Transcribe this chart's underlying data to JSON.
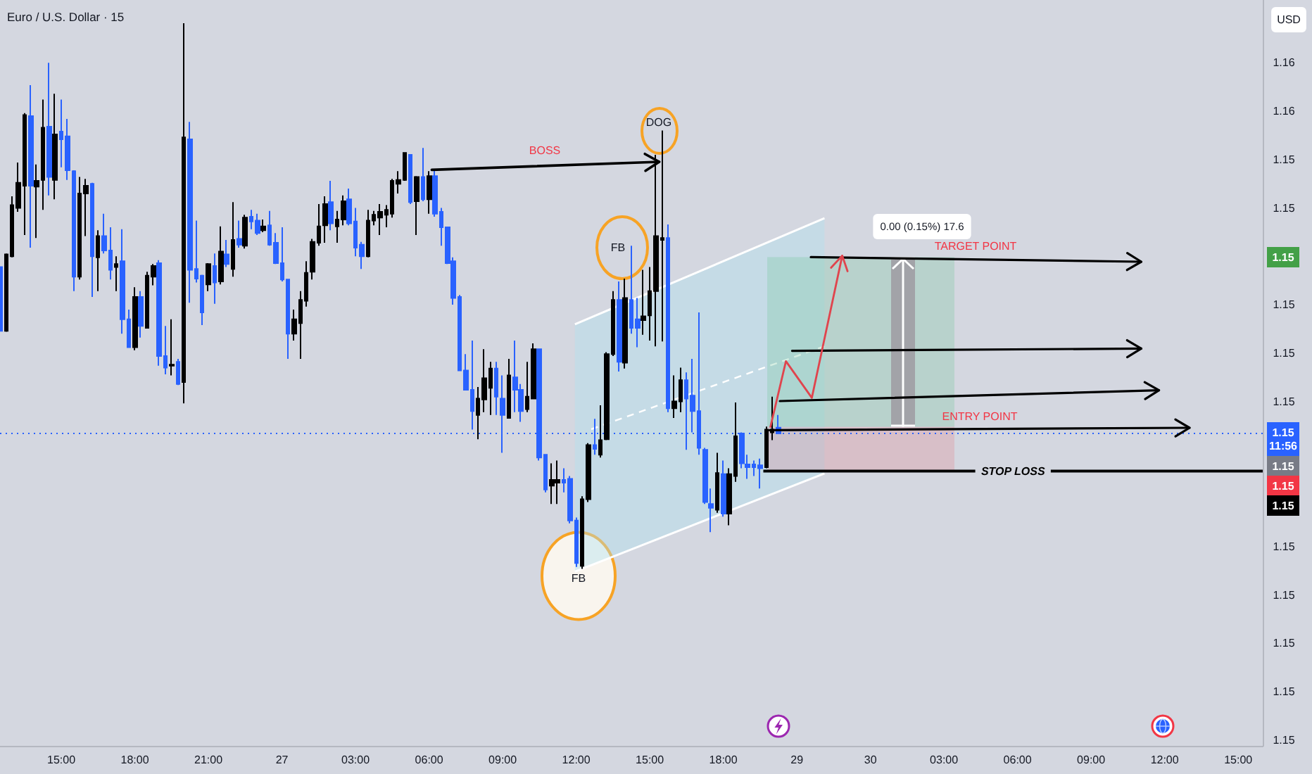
{
  "chart_data": {
    "type": "candlestick",
    "title": "Euro / U.S. Dollar · 15",
    "ylabel": "USD",
    "categories": [
      null,
      null,
      null,
      null,
      null,
      null,
      null,
      null,
      null,
      null,
      "15:00",
      null,
      null,
      null,
      null,
      null,
      null,
      null,
      null,
      null,
      null,
      null,
      "18:00",
      null,
      null,
      null,
      null,
      null,
      null,
      null,
      null,
      null,
      null,
      null,
      "21:00",
      null,
      null,
      null,
      null,
      null,
      null,
      null,
      null,
      null,
      null,
      null,
      "27",
      null,
      null,
      null,
      null,
      null,
      null,
      null,
      null,
      null,
      null,
      null,
      "03:00",
      null,
      null,
      null,
      null,
      null,
      null,
      null,
      null,
      null,
      null,
      null,
      "06:00",
      null,
      null,
      null,
      null,
      null,
      null,
      null,
      null,
      null,
      null,
      null,
      "09:00",
      null,
      null,
      null,
      null,
      null,
      null,
      null,
      null,
      null,
      null,
      null,
      "12:00",
      null,
      null,
      null,
      null,
      null,
      null,
      null,
      null,
      null,
      null,
      null,
      "15:00",
      null,
      null,
      null,
      null,
      null,
      null,
      null,
      null,
      null,
      null,
      null,
      "18:00",
      null,
      null,
      null,
      null,
      null,
      null,
      null,
      null,
      null,
      null,
      null,
      "29",
      null,
      null,
      null,
      null,
      null,
      null,
      null,
      null,
      null,
      null,
      null,
      "30",
      null,
      null,
      null,
      null,
      null,
      null,
      null,
      null,
      null,
      null,
      null,
      "03:00",
      null,
      null,
      null,
      null,
      null,
      null,
      null,
      null,
      null,
      null,
      null,
      "06:00",
      null,
      null,
      null,
      null,
      null,
      null,
      null,
      null,
      null,
      null,
      null,
      "09:00",
      null,
      null,
      null,
      null,
      null,
      null,
      null,
      null,
      null,
      null,
      null,
      "12:00",
      null,
      null,
      null,
      null,
      null,
      null,
      null,
      null,
      null,
      null,
      null,
      "15:00",
      null,
      null,
      null,
      null
    ],
    "ohlc": [
      [
        1.15389,
        1.15392,
        1.1532,
        1.15323
      ],
      [
        1.15323,
        1.15403,
        1.15322,
        1.15402
      ],
      [
        1.154,
        1.15462,
        1.15399,
        1.15453
      ],
      [
        1.1545,
        1.15497,
        1.15446,
        1.15476
      ],
      [
        1.15473,
        1.15548,
        1.15422,
        1.15546
      ],
      [
        1.15545,
        1.15577,
        1.15409,
        1.15473
      ],
      [
        1.15472,
        1.15495,
        1.15419,
        1.15478
      ],
      [
        1.15479,
        1.15562,
        1.15448,
        1.15533
      ],
      [
        1.15534,
        1.156,
        1.15463,
        1.15482
      ],
      [
        1.15479,
        1.15568,
        1.15459,
        1.15526
      ],
      [
        1.15529,
        1.15562,
        1.15492,
        1.15521
      ],
      [
        1.15524,
        1.15542,
        1.15479,
        1.15489
      ],
      [
        1.15488,
        1.15489,
        1.15364,
        1.15379
      ],
      [
        1.15379,
        1.15482,
        1.15376,
        1.15465
      ],
      [
        1.15465,
        1.1548,
        1.15421,
        1.15473
      ],
      [
        1.15475,
        1.15476,
        1.15358,
        1.154
      ],
      [
        1.15399,
        1.15427,
        1.15364,
        1.15421
      ],
      [
        1.15421,
        1.15444,
        1.15403,
        1.15406
      ],
      [
        1.15406,
        1.1543,
        1.15376,
        1.15386
      ],
      [
        1.15389,
        1.154,
        1.15364,
        1.15392
      ],
      [
        1.15395,
        1.15428,
        1.1532,
        1.15335
      ],
      [
        1.15335,
        1.15345,
        1.15306,
        1.15306
      ],
      [
        1.15306,
        1.15368,
        1.15303,
        1.15358
      ],
      [
        1.15358,
        1.15364,
        1.15316,
        1.15328
      ],
      [
        1.15326,
        1.15384,
        1.15326,
        1.1538
      ],
      [
        1.15379,
        1.15392,
        1.1537,
        1.1539
      ],
      [
        1.15393,
        1.15396,
        1.15287,
        1.15297
      ],
      [
        1.15297,
        1.15328,
        1.15278,
        1.15285
      ],
      [
        1.15287,
        1.15335,
        1.15277,
        1.15288
      ],
      [
        1.15291,
        1.15294,
        1.15267,
        1.15268
      ],
      [
        1.1527,
        1.15641,
        1.15248,
        1.15523
      ],
      [
        1.15521,
        1.15539,
        1.15352,
        1.15386
      ],
      [
        1.15387,
        1.15437,
        1.15373,
        1.15377
      ],
      [
        1.1538,
        1.15381,
        1.15329,
        1.15342
      ],
      [
        1.15371,
        1.15393,
        1.15364,
        1.15392
      ],
      [
        1.1539,
        1.15403,
        1.15351,
        1.15373
      ],
      [
        1.15374,
        1.15431,
        1.15371,
        1.15405
      ],
      [
        1.15402,
        1.15417,
        1.15389,
        1.15392
      ],
      [
        1.15387,
        1.15456,
        1.15379,
        1.15417
      ],
      [
        1.15418,
        1.15437,
        1.15409,
        1.15412
      ],
      [
        1.15411,
        1.15443,
        1.15408,
        1.1544
      ],
      [
        1.15441,
        1.15448,
        1.15428,
        1.15436
      ],
      [
        1.15437,
        1.15444,
        1.15422,
        1.15424
      ],
      [
        1.15427,
        1.15438,
        1.15425,
        1.15431
      ],
      [
        1.15432,
        1.15447,
        1.15411,
        1.15412
      ],
      [
        1.15414,
        1.15424,
        1.15392,
        1.15393
      ],
      [
        1.15393,
        1.1543,
        1.15374,
        1.15376
      ],
      [
        1.15376,
        1.15376,
        1.15294,
        1.1532
      ],
      [
        1.1532,
        1.15345,
        1.15313,
        1.15335
      ],
      [
        1.15331,
        1.15364,
        1.15294,
        1.15355
      ],
      [
        1.15354,
        1.15395,
        1.15348,
        1.15383
      ],
      [
        1.15384,
        1.15418,
        1.15376,
        1.15415
      ],
      [
        1.15414,
        1.15454,
        1.15411,
        1.15431
      ],
      [
        1.15432,
        1.15462,
        1.15414,
        1.15454
      ],
      [
        1.15456,
        1.15478,
        1.15427,
        1.15434
      ],
      [
        1.15431,
        1.15447,
        1.15414,
        1.15438
      ],
      [
        1.15438,
        1.15463,
        1.15432,
        1.15457
      ],
      [
        1.15459,
        1.1547,
        1.15432,
        1.15434
      ],
      [
        1.15436,
        1.1545,
        1.154,
        1.15409
      ],
      [
        1.15412,
        1.15415,
        1.15387,
        1.154
      ],
      [
        1.154,
        1.15448,
        1.15399,
        1.15437
      ],
      [
        1.15437,
        1.15447,
        1.15432,
        1.15443
      ],
      [
        1.1544,
        1.15454,
        1.15422,
        1.15446
      ],
      [
        1.15443,
        1.15453,
        1.1543,
        1.15448
      ],
      [
        1.15444,
        1.1548,
        1.1544,
        1.15478
      ],
      [
        1.15475,
        1.15488,
        1.15465,
        1.15479
      ],
      [
        1.15479,
        1.15507,
        1.15478,
        1.15507
      ],
      [
        1.15505,
        1.15505,
        1.15454,
        1.15456
      ],
      [
        1.15457,
        1.15483,
        1.15422,
        1.15482
      ],
      [
        1.15482,
        1.15512,
        1.15457,
        1.15459
      ],
      [
        1.15459,
        1.15488,
        1.15444,
        1.15483
      ],
      [
        1.15483,
        1.15489,
        1.15441,
        1.15444
      ],
      [
        1.15446,
        1.1545,
        1.15411,
        1.1543
      ],
      [
        1.1543,
        1.1543,
        1.15392,
        1.15393
      ],
      [
        1.15395,
        1.15399,
        1.1535,
        1.15357
      ],
      [
        1.15358,
        1.1536,
        1.15282,
        1.15282
      ],
      [
        1.15282,
        1.15299,
        1.15262,
        1.15262
      ],
      [
        1.15262,
        1.15313,
        1.15221,
        1.1524
      ],
      [
        1.15236,
        1.15265,
        1.15211,
        1.15253
      ],
      [
        1.15252,
        1.15304,
        1.15239,
        1.15274
      ],
      [
        1.15264,
        1.15291,
        1.15236,
        1.15284
      ],
      [
        1.15284,
        1.15291,
        1.15236,
        1.15255
      ],
      [
        1.15253,
        1.15277,
        1.15197,
        1.15236
      ],
      [
        1.15233,
        1.15294,
        1.15233,
        1.15277
      ],
      [
        1.15275,
        1.15313,
        1.15239,
        1.15262
      ],
      [
        1.15262,
        1.15268,
        1.15229,
        1.1524
      ],
      [
        1.15242,
        1.15291,
        1.15239,
        1.15255
      ],
      [
        1.15253,
        1.1531,
        1.15253,
        1.15304
      ],
      [
        1.15304,
        1.15304,
        1.15189,
        1.15192
      ],
      [
        1.15195,
        1.15195,
        1.15156,
        1.15159
      ],
      [
        1.15163,
        1.15186,
        1.15144,
        1.15169
      ],
      [
        1.15166,
        1.15189,
        1.15144,
        1.15169
      ],
      [
        1.15169,
        1.15181,
        1.15156,
        1.15166
      ],
      [
        1.1517,
        1.15173,
        1.15124,
        1.15127
      ],
      [
        1.15127,
        1.1513,
        1.15079,
        1.15083
      ],
      [
        1.1508,
        1.15152,
        1.15077,
        1.15149
      ],
      [
        1.15149,
        1.15207,
        1.15146,
        1.15205
      ],
      [
        1.15205,
        1.15232,
        1.15195,
        1.15201
      ],
      [
        1.15195,
        1.15246,
        1.15192,
        1.1521
      ],
      [
        1.15211,
        1.15301,
        1.1521,
        1.15299
      ],
      [
        1.15299,
        1.15364,
        1.15297,
        1.15355
      ],
      [
        1.15355,
        1.15374,
        1.15281,
        1.15291
      ],
      [
        1.1529,
        1.15377,
        1.15284,
        1.15357
      ],
      [
        1.15355,
        1.15411,
        1.1532,
        1.15326
      ],
      [
        1.15335,
        1.15357,
        1.15306,
        1.15326
      ],
      [
        1.15334,
        1.15386,
        1.15319,
        1.15338
      ],
      [
        1.15339,
        1.15389,
        1.15313,
        1.15364
      ],
      [
        1.15364,
        1.15505,
        1.15307,
        1.15421
      ],
      [
        1.15417,
        1.1553,
        1.15312,
        1.15419
      ],
      [
        1.15419,
        1.15433,
        1.15239,
        1.15243
      ],
      [
        1.15243,
        1.15277,
        1.15233,
        1.1525
      ],
      [
        1.1525,
        1.15285,
        1.15239,
        1.15272
      ],
      [
        1.15272,
        1.1528,
        1.152,
        1.15253
      ],
      [
        1.15256,
        1.15294,
        1.15218,
        1.1524
      ],
      [
        1.1524,
        1.15342,
        1.15195,
        1.15202
      ],
      [
        1.152,
        1.15202,
        1.15144,
        1.15146
      ],
      [
        1.15144,
        1.1516,
        1.15115,
        1.1514
      ],
      [
        1.15138,
        1.15197,
        1.15135,
        1.15176
      ],
      [
        1.15175,
        1.15189,
        1.15131,
        1.15134
      ],
      [
        1.15134,
        1.15181,
        1.15122,
        1.15175
      ],
      [
        1.15173,
        1.15249,
        1.15167,
        1.15214
      ],
      [
        1.15217,
        1.15218,
        1.15181,
        1.15186
      ],
      [
        1.15185,
        1.15195,
        1.1517,
        1.15182
      ],
      [
        1.15185,
        1.15189,
        1.15173,
        1.15182
      ],
      [
        1.15184,
        1.15191,
        1.1516,
        1.15181
      ],
      [
        1.15182,
        1.15224,
        1.15181,
        1.15221
      ],
      [
        1.15218,
        1.15255,
        1.1521,
        1.15221
      ],
      [
        1.15223,
        1.15236,
        1.15217,
        1.15217
      ],
      null,
      null,
      null,
      null,
      null,
      null,
      null,
      null,
      null,
      null,
      null,
      null,
      null,
      null,
      null,
      null,
      null,
      null,
      null,
      null,
      null,
      null,
      null,
      null,
      null,
      null,
      null,
      null,
      null,
      null,
      null,
      null,
      null,
      null,
      null,
      null,
      null,
      null,
      null,
      null,
      null,
      null,
      null,
      null,
      null,
      null,
      null,
      null,
      null,
      null,
      null,
      null,
      null,
      null,
      null,
      null,
      null,
      null,
      null,
      null,
      null,
      null,
      null,
      null,
      null,
      null,
      null,
      null,
      null,
      null,
      null,
      null,
      null,
      null,
      null,
      null,
      null,
      null,
      null
    ],
    "colors": [
      "#2962ff",
      "#000000",
      "#000000",
      "#000000",
      "#000000",
      "#2962ff",
      "#000000",
      "#000000",
      "#2962ff",
      "#000000",
      "#2962ff",
      "#2962ff",
      "#2962ff",
      "#000000",
      "#000000",
      "#2962ff",
      "#000000",
      "#2962ff",
      "#2962ff",
      "#000000",
      "#2962ff",
      "#2962ff",
      "#000000",
      "#2962ff",
      "#000000",
      "#000000",
      "#2962ff",
      "#2962ff",
      "#000000",
      "#2962ff",
      "#000000",
      "#2962ff",
      "#2962ff",
      "#2962ff",
      "#000000",
      "#2962ff",
      "#000000",
      "#2962ff",
      "#000000",
      "#2962ff",
      "#000000",
      "#2962ff",
      "#2962ff",
      "#000000",
      "#2962ff",
      "#2962ff",
      "#2962ff",
      "#2962ff",
      "#000000",
      "#000000",
      "#000000",
      "#000000",
      "#000000",
      "#000000",
      "#2962ff",
      "#000000",
      "#000000",
      "#2962ff",
      "#2962ff",
      "#2962ff",
      "#000000",
      "#000000",
      "#000000",
      "#000000",
      "#000000",
      "#000000",
      "#000000",
      "#2962ff",
      "#000000",
      "#2962ff",
      "#000000",
      "#2962ff",
      "#2962ff",
      "#2962ff",
      "#2962ff",
      "#2962ff",
      "#2962ff",
      "#2962ff",
      "#000000",
      "#000000",
      "#000000",
      "#2962ff",
      "#2962ff",
      "#000000",
      "#2962ff",
      "#2962ff",
      "#000000",
      "#000000",
      "#2962ff",
      "#2962ff",
      "#000000",
      "#000000",
      "#2962ff",
      "#2962ff",
      "#2962ff",
      "#000000",
      "#000000",
      "#2962ff",
      "#000000",
      "#000000",
      "#000000",
      "#2962ff",
      "#000000",
      "#2962ff",
      "#2962ff",
      "#000000",
      "#000000",
      "#000000",
      "#000000",
      "#2962ff",
      "#000000",
      "#000000",
      "#2962ff",
      "#2962ff",
      "#2962ff",
      "#2962ff",
      "#2962ff",
      "#000000",
      "#2962ff",
      "#000000",
      "#000000",
      "#2962ff",
      "#2962ff",
      "#2962ff",
      "#2962ff",
      "#000000",
      "#000000",
      "#2962ff",
      null,
      null,
      null,
      null,
      null,
      null,
      null,
      null,
      null,
      null,
      null,
      null,
      null,
      null,
      null,
      null,
      null,
      null,
      null,
      null,
      null,
      null,
      null,
      null,
      null,
      null,
      null,
      null,
      null,
      null,
      null,
      null,
      null,
      null,
      null,
      null,
      null,
      null,
      null,
      null,
      null,
      null,
      null,
      null,
      null,
      null,
      null,
      null,
      null,
      null,
      null,
      null,
      null,
      null,
      null,
      null,
      null,
      null,
      null,
      null,
      null,
      null,
      null,
      null,
      null,
      null,
      null,
      null,
      null,
      null,
      null,
      null,
      null,
      null,
      null,
      null,
      null,
      null,
      null
    ],
    "ref_lines": [
      {
        "axis": "y",
        "value": 1.15217,
        "color": "#2962ff",
        "line_style": "dotted"
      },
      {
        "axis": "y",
        "value": 1.15178,
        "label": "STOP LOSS",
        "color": "#000000",
        "line_style": "solid"
      }
    ],
    "annotations": [
      "BOSS",
      "DOG",
      "FB",
      "0.00 (0.15%) 17.6",
      "TARGET POINT",
      "ENTRY POINT",
      {
        "text": "FB",
        "y": 1.15077
      },
      "1.15",
      "1.15\n11:56",
      "1.15",
      "1.15",
      "1.15"
    ],
    "ylim": [
      1.14894,
      1.15665
    ],
    "yticks": [
      {
        "value": 1.156,
        "label": "1.16"
      },
      {
        "value": 1.1555,
        "label": "1.16"
      },
      {
        "value": 1.155,
        "label": "1.15"
      },
      {
        "value": 1.1545,
        "label": "1.15"
      },
      {
        "value": 1.1535,
        "label": "1.15"
      },
      {
        "value": 1.153,
        "label": "1.15"
      },
      {
        "value": 1.1525,
        "label": "1.15"
      },
      {
        "value": 1.151,
        "label": "1.15"
      },
      {
        "value": 1.1505,
        "label": "1.15"
      },
      {
        "value": 1.15,
        "label": "1.15"
      },
      {
        "value": 1.1495,
        "label": "1.15"
      },
      {
        "value": 1.149,
        "label": "1.15"
      }
    ]
  }
}
